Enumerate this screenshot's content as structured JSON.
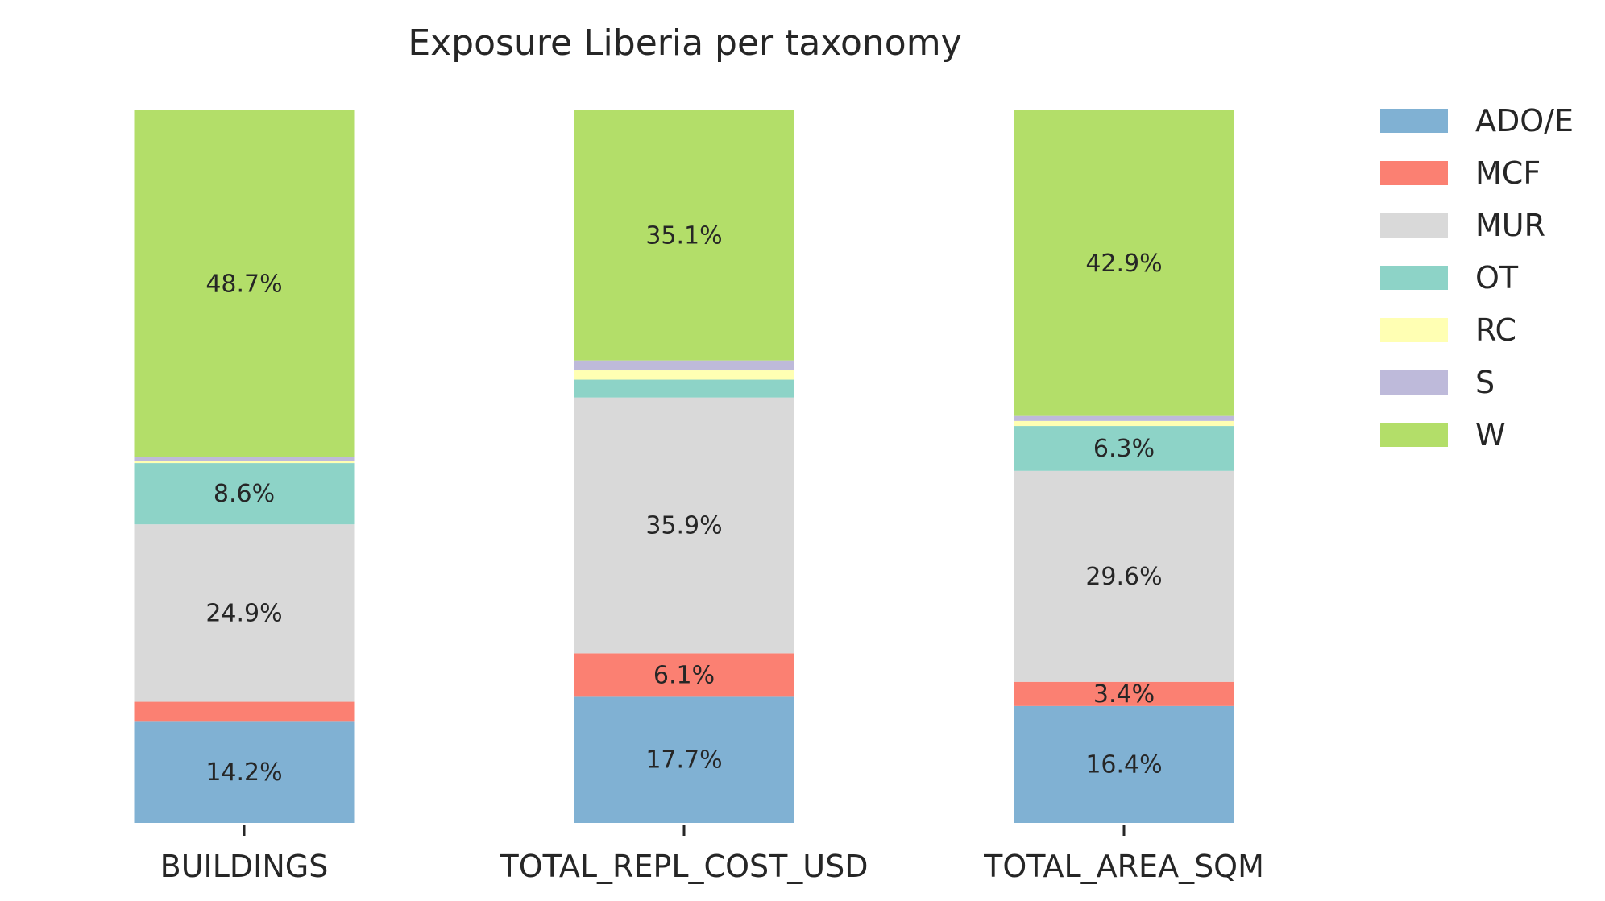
{
  "chart_data": {
    "type": "bar",
    "stacked": true,
    "normalized": true,
    "title": "Exposure Liberia per taxonomy",
    "xlabel": "",
    "ylabel": "",
    "ylim": [
      0,
      100
    ],
    "grid": false,
    "legend_position": "top-right",
    "categories": [
      "BUILDINGS",
      "TOTAL_REPL_COST_USD",
      "TOTAL_AREA_SQM"
    ],
    "series": [
      {
        "name": "ADO/E",
        "color": "#80b1d3",
        "values": [
          14.2,
          17.7,
          16.4
        ],
        "labels": [
          "14.2%",
          "17.7%",
          "16.4%"
        ]
      },
      {
        "name": "MCF",
        "color": "#fb8072",
        "values": [
          2.8,
          6.1,
          3.4
        ],
        "labels": [
          "",
          "6.1%",
          "3.4%"
        ]
      },
      {
        "name": "MUR",
        "color": "#d9d9d9",
        "values": [
          24.9,
          35.9,
          29.6
        ],
        "labels": [
          "24.9%",
          "35.9%",
          "29.6%"
        ]
      },
      {
        "name": "OT",
        "color": "#8dd3c7",
        "values": [
          8.6,
          2.5,
          6.3
        ],
        "labels": [
          "8.6%",
          "",
          "6.3%"
        ]
      },
      {
        "name": "RC",
        "color": "#ffffb3",
        "values": [
          0.3,
          1.3,
          0.7
        ],
        "labels": [
          "",
          "",
          ""
        ]
      },
      {
        "name": "S",
        "color": "#bebada",
        "values": [
          0.5,
          1.4,
          0.7
        ],
        "labels": [
          "",
          "",
          ""
        ]
      },
      {
        "name": "W",
        "color": "#b3de69",
        "values": [
          48.7,
          35.1,
          42.9
        ],
        "labels": [
          "48.7%",
          "35.1%",
          "42.9%"
        ]
      }
    ]
  }
}
